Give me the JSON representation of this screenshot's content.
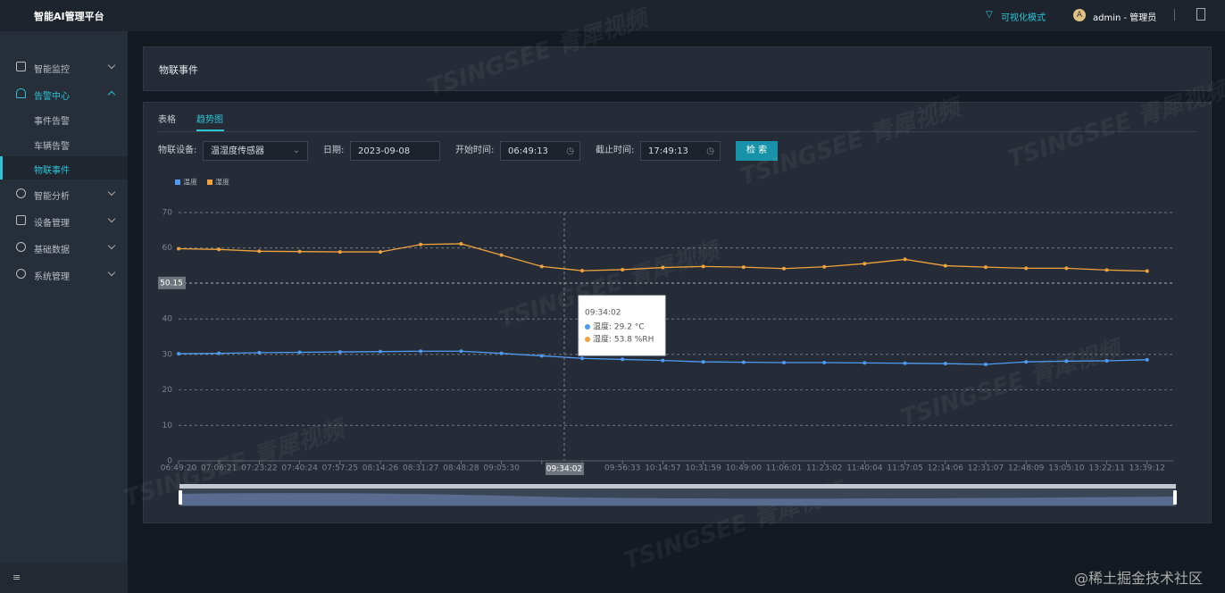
{
  "header": {
    "title": "智能AI管理平台",
    "mode": "可视化模式",
    "avatar": "A",
    "user": "admin - 管理员"
  },
  "sidebar": {
    "menu": [
      {
        "label": "智能监控"
      },
      {
        "label": "告警中心",
        "children": [
          "事件告警",
          "车辆告警",
          "物联事件"
        ]
      },
      {
        "label": "智能分析"
      },
      {
        "label": "设备管理"
      },
      {
        "label": "基础数据"
      },
      {
        "label": "系统管理"
      }
    ]
  },
  "panel": {
    "title": "物联事件"
  },
  "tabs": [
    "表格",
    "趋势图"
  ],
  "filters": {
    "device_label": "物联设备:",
    "device": "温湿度传感器",
    "date_label": "日期:",
    "date": "2023-09-08",
    "start_label": "开始时间:",
    "start": "06:49:13",
    "end_label": "截止时间:",
    "end": "17:49:13",
    "search": "检 索"
  },
  "chart_data": {
    "type": "line",
    "categories": [
      "06:49:20",
      "07:06:21",
      "07:23:22",
      "07:40:24",
      "07:57:25",
      "08:14:26",
      "08:31:27",
      "08:48:28",
      "09:05:30",
      null,
      null,
      "09:56:33",
      "10:14:57",
      "10:31:59",
      "10:49:00",
      "11:06:01",
      "11:23:02",
      "11:40:04",
      "11:57:05",
      "12:14:06",
      "12:31:07",
      "12:48:09",
      "13:05:10",
      "13:22:11",
      "13:39:12"
    ],
    "series": [
      {
        "name": "温度",
        "color": "#4f9bf2",
        "values": [
          30.2,
          30.3,
          30.5,
          30.6,
          30.7,
          30.8,
          30.9,
          30.9,
          30.3,
          29.6,
          28.9,
          28.6,
          28.3,
          27.9,
          27.8,
          27.7,
          27.7,
          27.6,
          27.5,
          27.4,
          27.2,
          27.9,
          28.1,
          28.2,
          28.5
        ]
      },
      {
        "name": "湿度",
        "color": "#f0a23c",
        "values": [
          59.8,
          59.6,
          59.1,
          59.0,
          58.9,
          58.9,
          61.0,
          61.2,
          58.0,
          54.8,
          53.6,
          53.9,
          54.5,
          54.8,
          54.6,
          54.2,
          54.7,
          55.6,
          56.8,
          55.0,
          54.6,
          54.3,
          54.3,
          53.8,
          53.5
        ]
      }
    ],
    "ylim": [
      0,
      70
    ],
    "yticks": [
      0,
      10,
      20,
      30,
      40,
      50,
      60,
      70
    ],
    "grid": true,
    "legend": "top-left",
    "pointer": {
      "x": "09:34:02",
      "y": 50.15
    },
    "tooltip": {
      "title": "09:34:02",
      "rows": [
        "温度: 29.2 °C",
        "湿度: 53.8 %RH"
      ]
    }
  },
  "watermark": "TSINGSEE 青犀视频",
  "credit": "@稀土掘金技术社区"
}
